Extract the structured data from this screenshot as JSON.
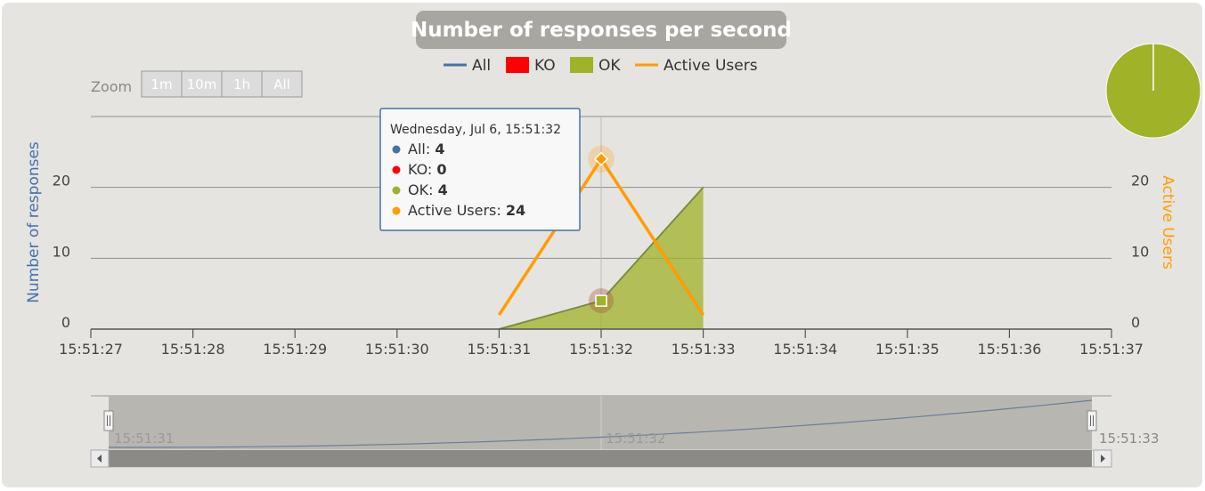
{
  "chart_data": {
    "type": "area",
    "title": "Number of responses per second",
    "ylabel_left": "Number of responses",
    "ylabel_right": "Active Users",
    "x_ticks": [
      "15:51:27",
      "15:51:28",
      "15:51:29",
      "15:51:30",
      "15:51:31",
      "15:51:32",
      "15:51:33",
      "15:51:34",
      "15:51:35",
      "15:51:36",
      "15:51:37"
    ],
    "y_left_ticks": [
      "0",
      "10",
      "20"
    ],
    "y_right_ticks": [
      "0",
      "10",
      "20"
    ],
    "y_left_range": [
      0,
      30
    ],
    "y_right_range": [
      0,
      30
    ],
    "x": [
      "15:51:31",
      "15:51:32",
      "15:51:33"
    ],
    "series": [
      {
        "name": "All",
        "axis": "left",
        "values": [
          0,
          4,
          20
        ],
        "color": "#4572a7"
      },
      {
        "name": "KO",
        "axis": "left",
        "values": [
          0,
          0,
          0
        ],
        "color": "#ff0000"
      },
      {
        "name": "OK",
        "axis": "left",
        "values": [
          0,
          4,
          20
        ],
        "color": "#a0b228"
      },
      {
        "name": "Active Users",
        "axis": "right",
        "values": [
          2,
          24,
          2
        ],
        "color": "#ff9d00"
      }
    ],
    "legend": [
      "All",
      "KO",
      "OK",
      "Active Users"
    ],
    "legend_position": "top",
    "grid": true,
    "zoom": {
      "label": "Zoom",
      "buttons": [
        "1m",
        "10m",
        "1h",
        "All"
      ]
    },
    "tooltip": {
      "header": "Wednesday, Jul 6, 15:51:32",
      "rows": [
        {
          "label": "All: ",
          "value": "4",
          "color": "#4572a7"
        },
        {
          "label": "KO: ",
          "value": "0",
          "color": "#ff0000"
        },
        {
          "label": "OK: ",
          "value": "4",
          "color": "#a0b228"
        },
        {
          "label": "Active Users: ",
          "value": "24",
          "color": "#ff9d00"
        }
      ]
    },
    "navigator_labels": [
      "15:51:31",
      "15:51:32",
      "15:51:33"
    ],
    "pie": {
      "slices": [
        {
          "name": "OK",
          "value": 100,
          "color": "#a0b228"
        },
        {
          "name": "KO",
          "value": 0,
          "color": "#ff0000"
        }
      ]
    }
  }
}
